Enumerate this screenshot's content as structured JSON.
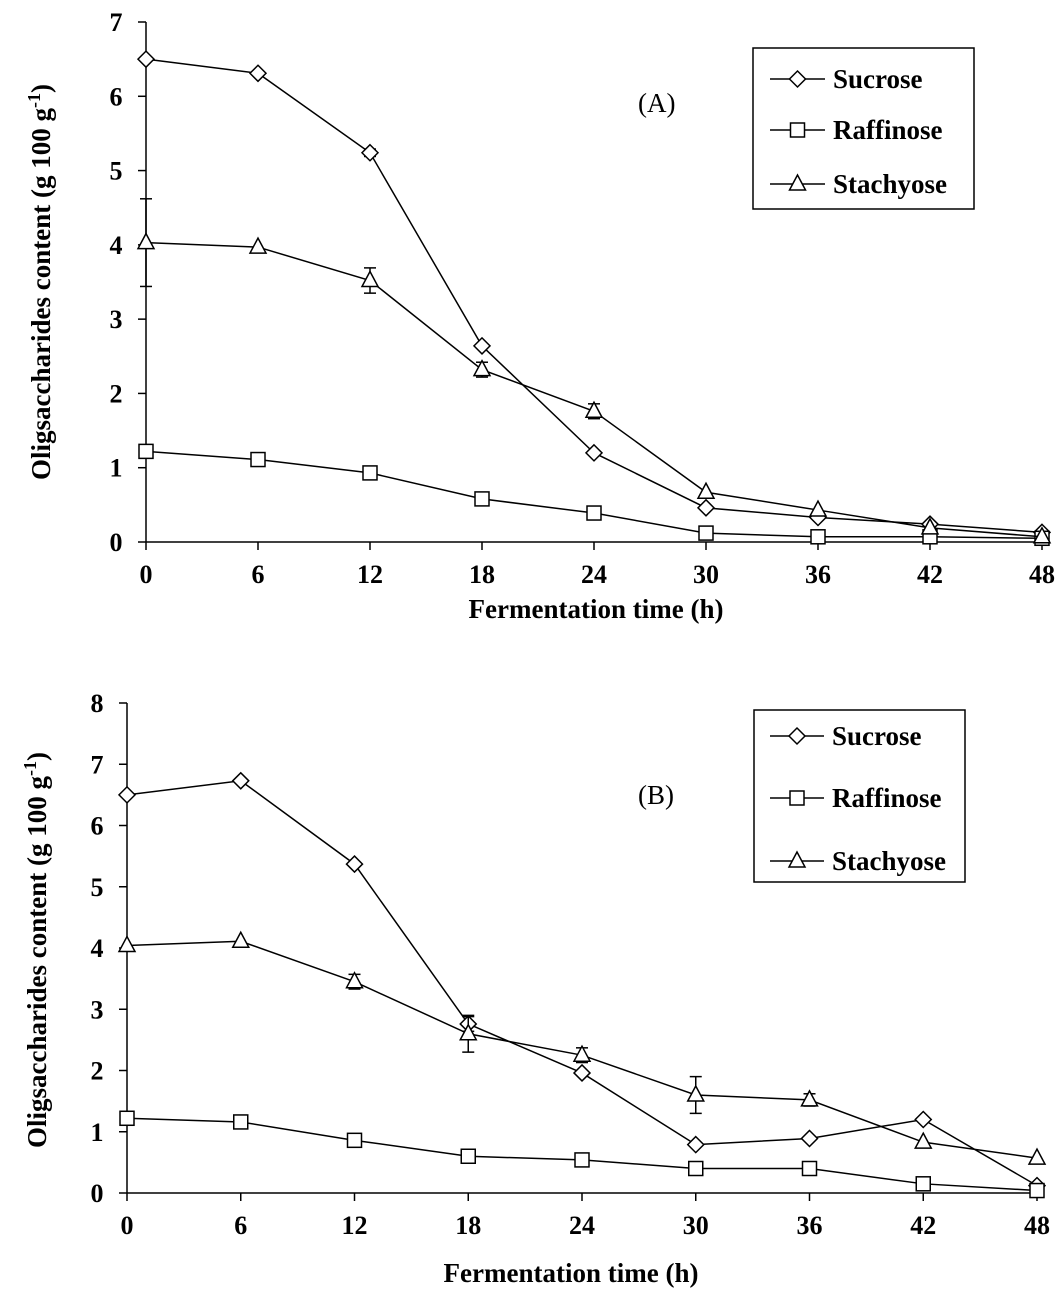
{
  "chart_data": [
    {
      "type": "line",
      "panel_label": "(A)",
      "xlabel": "Fermentation time (h)",
      "ylabel_main": "Oligsaccharides content (g 100 g",
      "ylabel_sup": "-1",
      "ylabel_end": ")",
      "x": [
        0,
        6,
        12,
        18,
        24,
        30,
        36,
        42,
        48
      ],
      "xticks": [
        "0",
        "6",
        "12",
        "18",
        "24",
        "30",
        "36",
        "42",
        "48"
      ],
      "yticks": [
        "0",
        "1",
        "2",
        "3",
        "4",
        "5",
        "6",
        "7"
      ],
      "xlim": [
        0,
        48
      ],
      "ylim": [
        0,
        7
      ],
      "grid": false,
      "legend_position": "top-right",
      "series": [
        {
          "name": "Sucrose",
          "marker": "diamond",
          "values": [
            6.5,
            6.31,
            5.24,
            2.64,
            1.2,
            0.46,
            0.33,
            0.24,
            0.13
          ],
          "errors": [
            0,
            0,
            0.05,
            0,
            0,
            0,
            0,
            0,
            0
          ]
        },
        {
          "name": "Raffinose",
          "marker": "square",
          "values": [
            1.22,
            1.11,
            0.93,
            0.58,
            0.39,
            0.12,
            0.07,
            0.07,
            0.05
          ],
          "errors": [
            0,
            0,
            0,
            0,
            0,
            0,
            0,
            0,
            0
          ]
        },
        {
          "name": "Stachyose",
          "marker": "triangle",
          "values": [
            4.03,
            3.97,
            3.52,
            2.32,
            1.76,
            0.67,
            0.43,
            0.19,
            0.07
          ],
          "errors": [
            0.59,
            0,
            0.17,
            0.1,
            0.1,
            0,
            0,
            0,
            0
          ]
        }
      ]
    },
    {
      "type": "line",
      "panel_label": "(B)",
      "xlabel": "Fermentation time (h)",
      "ylabel_main": "Oligsaccharides content (g 100 g",
      "ylabel_sup": "-1",
      "ylabel_end": ")",
      "x": [
        0,
        6,
        12,
        18,
        24,
        30,
        36,
        42,
        48
      ],
      "xticks": [
        "0",
        "6",
        "12",
        "18",
        "24",
        "30",
        "36",
        "42",
        "48"
      ],
      "yticks": [
        "0",
        "1",
        "2",
        "3",
        "4",
        "5",
        "6",
        "7",
        "8"
      ],
      "xlim": [
        0,
        48
      ],
      "ylim": [
        0,
        8
      ],
      "grid": false,
      "legend_position": "top-right",
      "series": [
        {
          "name": "Sucrose",
          "marker": "diamond",
          "values": [
            6.5,
            6.73,
            5.37,
            2.76,
            1.96,
            0.79,
            0.89,
            1.2,
            0.12
          ],
          "errors": [
            0,
            0,
            0,
            0.12,
            0,
            0,
            0,
            0,
            0
          ]
        },
        {
          "name": "Raffinose",
          "marker": "square",
          "values": [
            1.22,
            1.16,
            0.86,
            0.6,
            0.54,
            0.4,
            0.4,
            0.15,
            0.04
          ],
          "errors": [
            0,
            0,
            0,
            0,
            0,
            0,
            0,
            0,
            0
          ]
        },
        {
          "name": "Stachyose",
          "marker": "triangle",
          "values": [
            4.04,
            4.11,
            3.45,
            2.6,
            2.25,
            1.6,
            1.52,
            0.83,
            0.57
          ],
          "errors": [
            0,
            0,
            0.12,
            0.3,
            0.12,
            0.3,
            0.1,
            0,
            0
          ]
        }
      ]
    }
  ]
}
